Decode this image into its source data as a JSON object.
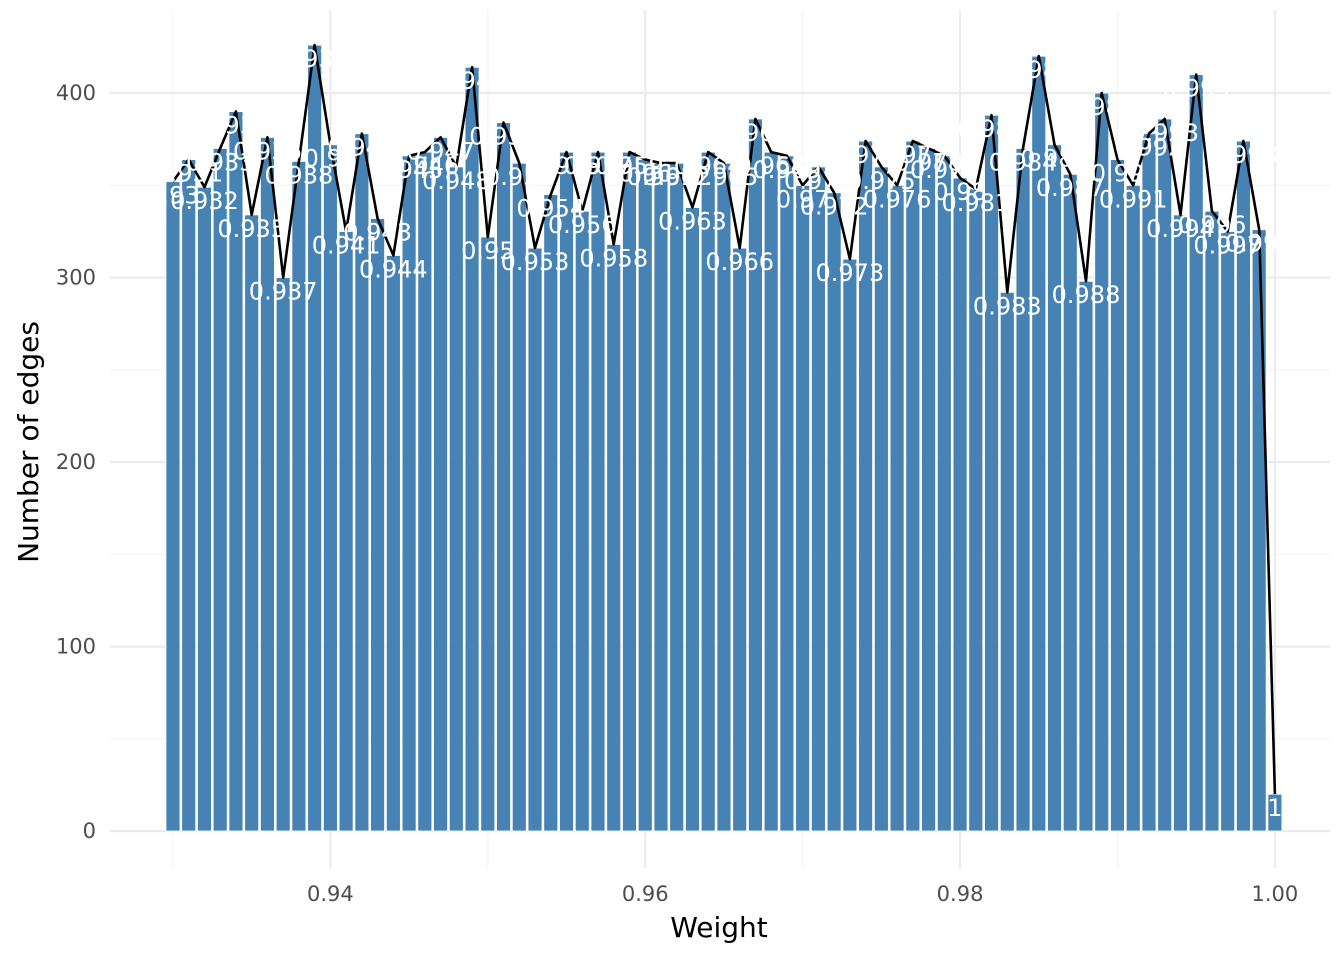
{
  "chart_data": {
    "type": "bar",
    "title": "",
    "xlabel": "Weight",
    "ylabel": "Number of edges",
    "xlim": [
      0.926,
      1.0035
    ],
    "ylim": [
      -20,
      445
    ],
    "x_ticks": [
      0.94,
      0.96,
      0.98,
      1.0
    ],
    "x_tick_labels": [
      "0.94",
      "0.96",
      "0.98",
      "1.00"
    ],
    "y_ticks": [
      0,
      100,
      200,
      300,
      400
    ],
    "y_tick_labels": [
      "0",
      "100",
      "200",
      "300",
      "400"
    ],
    "grid": true,
    "bar_color": "#4682b4",
    "line_color": "#000000",
    "label_color": "#ffffff",
    "bars": [
      {
        "x": 0.93,
        "value": 352,
        "label": "0.93"
      },
      {
        "x": 0.931,
        "value": 364,
        "label": "0.931"
      },
      {
        "x": 0.932,
        "value": 349,
        "label": "0.932"
      },
      {
        "x": 0.933,
        "value": 370,
        "label": "0.933"
      },
      {
        "x": 0.934,
        "value": 390,
        "label": "0.934"
      },
      {
        "x": 0.935,
        "value": 334,
        "label": "0.935"
      },
      {
        "x": 0.936,
        "value": 376,
        "label": "0.936"
      },
      {
        "x": 0.937,
        "value": 300,
        "label": "0.937"
      },
      {
        "x": 0.938,
        "value": 363,
        "label": "0.938"
      },
      {
        "x": 0.939,
        "value": 426,
        "label": "0.939"
      },
      {
        "x": 0.94,
        "value": 372,
        "label": "0.94"
      },
      {
        "x": 0.941,
        "value": 325,
        "label": "0.941"
      },
      {
        "x": 0.942,
        "value": 378,
        "label": "0.942"
      },
      {
        "x": 0.943,
        "value": 332,
        "label": "0.943"
      },
      {
        "x": 0.944,
        "value": 312,
        "label": "0.944"
      },
      {
        "x": 0.945,
        "value": 366,
        "label": "0.945"
      },
      {
        "x": 0.946,
        "value": 368,
        "label": "0.946"
      },
      {
        "x": 0.947,
        "value": 376,
        "label": "0.947"
      },
      {
        "x": 0.948,
        "value": 360,
        "label": "0.948"
      },
      {
        "x": 0.949,
        "value": 414,
        "label": "0.949"
      },
      {
        "x": 0.95,
        "value": 322,
        "label": "0.95"
      },
      {
        "x": 0.951,
        "value": 384,
        "label": "0.951"
      },
      {
        "x": 0.952,
        "value": 362,
        "label": "0.952"
      },
      {
        "x": 0.953,
        "value": 316,
        "label": "0.953"
      },
      {
        "x": 0.954,
        "value": 345,
        "label": "0.954"
      },
      {
        "x": 0.955,
        "value": 368,
        "label": "0.955"
      },
      {
        "x": 0.956,
        "value": 336,
        "label": "0.956"
      },
      {
        "x": 0.957,
        "value": 368,
        "label": "0.957"
      },
      {
        "x": 0.958,
        "value": 318,
        "label": "0.958"
      },
      {
        "x": 0.959,
        "value": 368,
        "label": "0.959"
      },
      {
        "x": 0.96,
        "value": 364,
        "label": "0.96"
      },
      {
        "x": 0.961,
        "value": 362,
        "label": "0.961"
      },
      {
        "x": 0.962,
        "value": 362,
        "label": "0.962"
      },
      {
        "x": 0.963,
        "value": 338,
        "label": "0.963"
      },
      {
        "x": 0.964,
        "value": 368,
        "label": "0.964"
      },
      {
        "x": 0.965,
        "value": 362,
        "label": "0.965"
      },
      {
        "x": 0.966,
        "value": 316,
        "label": "0.966"
      },
      {
        "x": 0.967,
        "value": 386,
        "label": "0.967"
      },
      {
        "x": 0.968,
        "value": 368,
        "label": "0.968"
      },
      {
        "x": 0.969,
        "value": 366,
        "label": "0.969"
      },
      {
        "x": 0.97,
        "value": 350,
        "label": "0.97"
      },
      {
        "x": 0.971,
        "value": 360,
        "label": "0.971"
      },
      {
        "x": 0.972,
        "value": 346,
        "label": "0.972"
      },
      {
        "x": 0.973,
        "value": 310,
        "label": "0.973"
      },
      {
        "x": 0.974,
        "value": 374,
        "label": "0.974"
      },
      {
        "x": 0.975,
        "value": 360,
        "label": "0.975"
      },
      {
        "x": 0.976,
        "value": 350,
        "label": "0.976"
      },
      {
        "x": 0.977,
        "value": 374,
        "label": "0.977"
      },
      {
        "x": 0.978,
        "value": 370,
        "label": "0.978"
      },
      {
        "x": 0.979,
        "value": 366,
        "label": "0.979"
      },
      {
        "x": 0.98,
        "value": 354,
        "label": "0.98"
      },
      {
        "x": 0.981,
        "value": 348,
        "label": "0.981"
      },
      {
        "x": 0.982,
        "value": 388,
        "label": "0.982"
      },
      {
        "x": 0.983,
        "value": 292,
        "label": "0.983"
      },
      {
        "x": 0.984,
        "value": 370,
        "label": "0.984"
      },
      {
        "x": 0.985,
        "value": 420,
        "label": "0.985"
      },
      {
        "x": 0.986,
        "value": 372,
        "label": "0.986"
      },
      {
        "x": 0.987,
        "value": 356,
        "label": "0.987"
      },
      {
        "x": 0.988,
        "value": 298,
        "label": "0.988"
      },
      {
        "x": 0.989,
        "value": 400,
        "label": "0.989"
      },
      {
        "x": 0.99,
        "value": 364,
        "label": "0.99"
      },
      {
        "x": 0.991,
        "value": 350,
        "label": "0.991"
      },
      {
        "x": 0.992,
        "value": 378,
        "label": "0.992"
      },
      {
        "x": 0.993,
        "value": 386,
        "label": "0.993"
      },
      {
        "x": 0.994,
        "value": 334,
        "label": "0.994"
      },
      {
        "x": 0.995,
        "value": 410,
        "label": "0.995"
      },
      {
        "x": 0.996,
        "value": 336,
        "label": "0.996"
      },
      {
        "x": 0.997,
        "value": 325,
        "label": "0.997"
      },
      {
        "x": 0.998,
        "value": 374,
        "label": "0.998"
      },
      {
        "x": 0.999,
        "value": 326,
        "label": "0.999"
      },
      {
        "x": 1.0,
        "value": 20,
        "label": "1"
      }
    ]
  }
}
